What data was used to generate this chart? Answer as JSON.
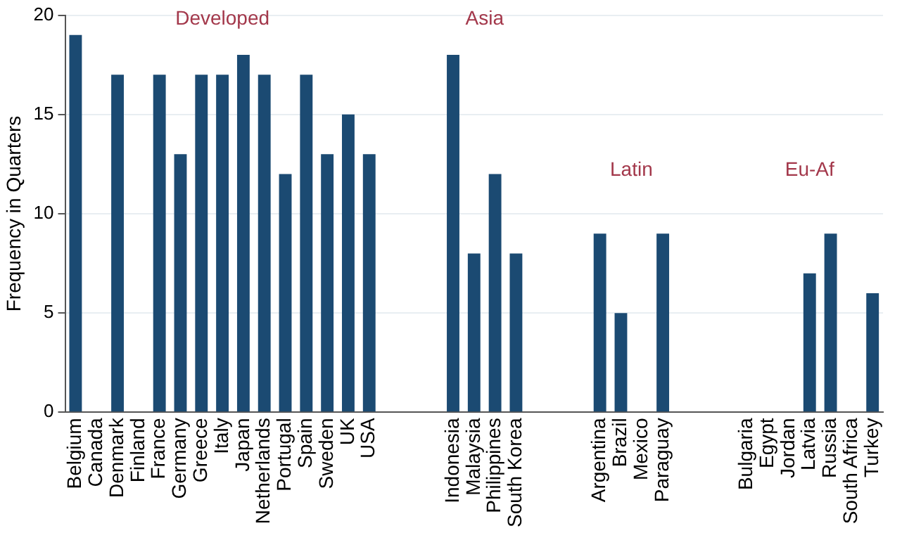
{
  "chart_data": {
    "type": "bar",
    "ylabel": "Frequency in Quarters",
    "categories": [
      "Belgium",
      "Canada",
      "Denmark",
      "Finland",
      "France",
      "Germany",
      "Greece",
      "Italy",
      "Japan",
      "Netherlands",
      "Portugal",
      "Spain",
      "Sweden",
      "UK",
      "USA",
      null,
      null,
      null,
      "Indonesia",
      "Malaysia",
      "Philippines",
      "South Korea",
      null,
      null,
      null,
      "Argentina",
      "Brazil",
      "Mexico",
      "Paraguay",
      null,
      null,
      null,
      "Bulgaria",
      "Egypt",
      "Jordan",
      "Latvia",
      "Russia",
      "South Africa",
      "Turkey"
    ],
    "values": [
      19,
      0,
      17,
      0,
      17,
      13,
      17,
      17,
      18,
      17,
      12,
      17,
      13,
      15,
      13,
      null,
      null,
      null,
      18,
      8,
      12,
      8,
      null,
      null,
      null,
      9,
      5,
      0,
      9,
      null,
      null,
      null,
      0,
      0,
      0,
      7,
      9,
      0,
      6
    ],
    "color": "#1b4a72",
    "ylim": [
      0,
      20
    ],
    "yticks": [
      0,
      5,
      10,
      15,
      20
    ],
    "grid": "y",
    "legend": false,
    "annotations": [
      "Developed",
      "Asia",
      "Latin",
      "Eu-Af"
    ]
  }
}
